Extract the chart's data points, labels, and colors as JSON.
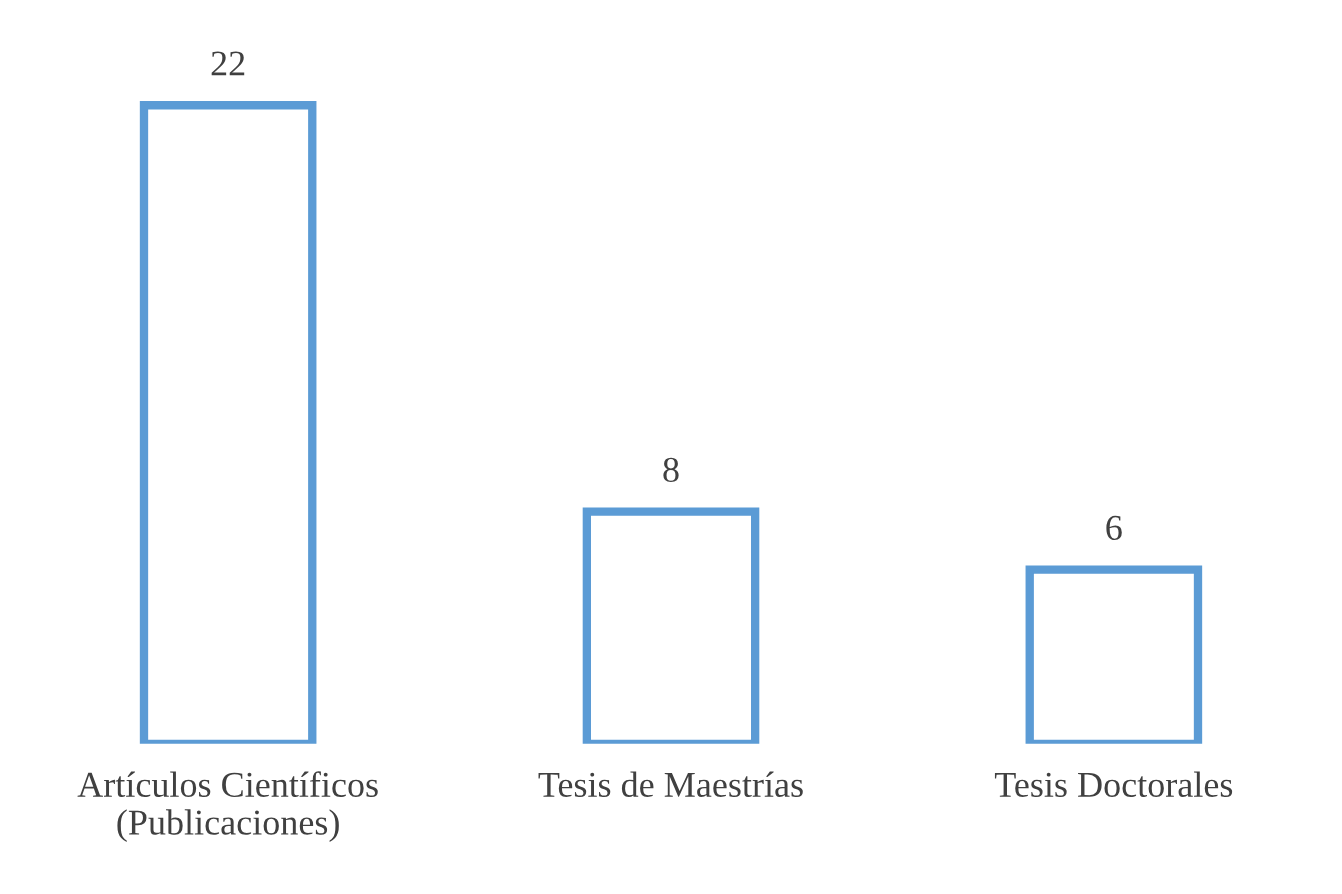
{
  "chart_data": {
    "type": "bar",
    "categories": [
      "Artículos Científicos\n(Publicaciones)",
      "Tesis de Maestrías",
      "Tesis Doctorales"
    ],
    "values": [
      22,
      8,
      6
    ],
    "color": "#5b9bd5",
    "data_labels": true,
    "grid": false,
    "legend": false
  }
}
